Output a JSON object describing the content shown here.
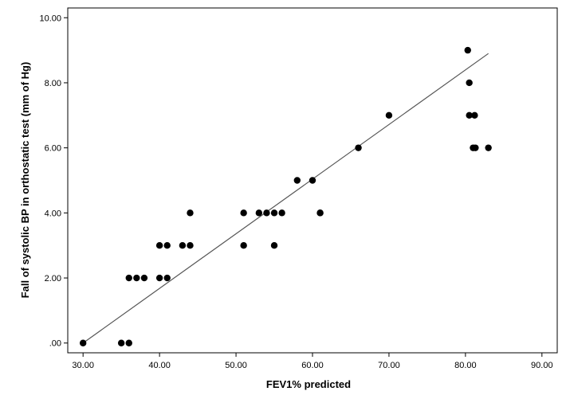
{
  "chart_data": {
    "type": "scatter",
    "title": "",
    "xlabel": "FEV1% predicted",
    "ylabel": "Fall of systolic BP in orthostatic test (mm of Hg)",
    "xlim": [
      28,
      92
    ],
    "ylim": [
      -0.3,
      10.3
    ],
    "x_ticks": [
      "30.00",
      "40.00",
      "50.00",
      "60.00",
      "70.00",
      "80.00",
      "90.00"
    ],
    "x_tick_values": [
      30,
      40,
      50,
      60,
      70,
      80,
      90
    ],
    "y_ticks": [
      ".00",
      "2.00",
      "4.00",
      "6.00",
      "8.00",
      "10.00"
    ],
    "y_tick_values": [
      0,
      2,
      4,
      6,
      8,
      10
    ],
    "grid": false,
    "series": [
      {
        "x": [
          30,
          35,
          36,
          36,
          37,
          38,
          40,
          40,
          41,
          41,
          43,
          44,
          44,
          51,
          51,
          53,
          54,
          55,
          55,
          56,
          58,
          60,
          61,
          61,
          66,
          70,
          80.3,
          80.5,
          80.5,
          81,
          81.2,
          81.3,
          83
        ],
        "y": [
          0,
          0,
          0,
          2,
          2,
          2,
          2,
          3,
          2,
          3,
          3,
          3,
          4,
          4,
          3,
          4,
          4,
          4,
          3,
          4,
          5,
          5,
          4,
          4,
          6,
          7,
          9,
          8,
          7,
          6,
          7,
          6,
          6
        ]
      }
    ],
    "fit_line": {
      "x": [
        30,
        83
      ],
      "y": [
        0,
        8.9
      ]
    },
    "colors": {
      "points": "#000000",
      "fit_line": "#555555",
      "axis": "#000000"
    }
  }
}
